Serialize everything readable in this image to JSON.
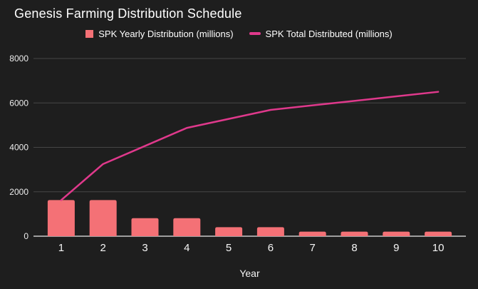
{
  "page": {
    "background": "#1e1e1e"
  },
  "header": {
    "title": "Genesis Farming Distribution Schedule"
  },
  "legend": {
    "items": [
      {
        "label": "SPK Yearly Distribution (millions)",
        "marker": "square",
        "color": "#f47176"
      },
      {
        "label": "SPK Total Distributed (millions)",
        "marker": "dash",
        "color": "#e0398c"
      }
    ]
  },
  "chart_data": {
    "type": "bar",
    "title": "Genesis Farming Distribution Schedule",
    "categories": [
      "1",
      "2",
      "3",
      "4",
      "5",
      "6",
      "7",
      "8",
      "9",
      "10"
    ],
    "series": [
      {
        "name": "SPK Yearly Distribution (millions)",
        "type": "bar",
        "color": "#f47176",
        "values": [
          1625,
          1625,
          812.5,
          812.5,
          406.25,
          406.25,
          203.125,
          203.125,
          203.125,
          203.125
        ]
      },
      {
        "name": "SPK Total Distributed (millions)",
        "type": "line",
        "color": "#e0398c",
        "values": [
          1625,
          3250,
          4062.5,
          4875,
          5281.25,
          5687.5,
          5890.625,
          6093.75,
          6296.875,
          6500
        ]
      }
    ],
    "xlabel": "Year",
    "ylabel": "",
    "ylim": [
      0,
      8000
    ],
    "yticks": [
      0,
      2000,
      4000,
      6000,
      8000
    ],
    "grid": true,
    "legend_position": "top",
    "styles": {
      "grid_color": "#464646",
      "axis_color": "#c9c9c9",
      "ytick_color": "#ededed",
      "xtick_color": "#f5f5f5"
    }
  }
}
